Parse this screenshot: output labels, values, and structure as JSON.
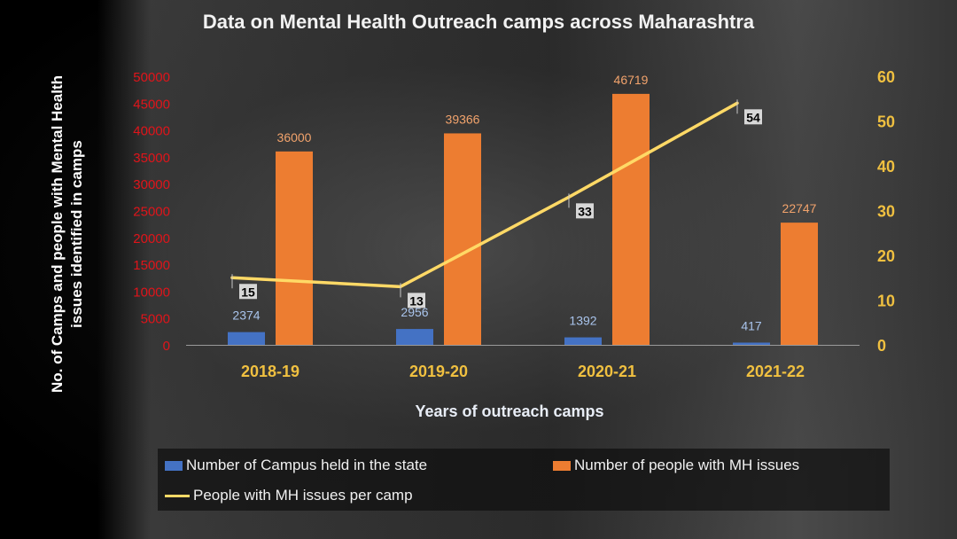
{
  "colors": {
    "blue": "#4472c4",
    "orange": "#ed7d31",
    "line": "#ffd966",
    "left_axis": "#e0141a",
    "right_axis": "#f0c040"
  },
  "chart_data": {
    "type": "bar+line",
    "title": "Data on Mental Health Outreach camps across Maharashtra",
    "xlabel": "Years of outreach camps",
    "ylabel": [
      "No. of  Camps and people with Mental Health",
      "issues identified in camps"
    ],
    "categories": [
      "2018-19",
      "2019-20",
      "2020-21",
      "2021-22"
    ],
    "ylim": [
      0,
      50000
    ],
    "yticks": [
      "50000",
      "45000",
      "40000",
      "35000",
      "30000",
      "25000",
      "20000",
      "15000",
      "10000",
      "5000",
      "0"
    ],
    "y2lim": [
      0,
      60
    ],
    "y2ticks": [
      "60",
      "50",
      "40",
      "30",
      "20",
      "10",
      "0"
    ],
    "series": [
      {
        "name": "Number of Campus held in the state",
        "type": "bar",
        "axis": "left",
        "values": [
          2374,
          2956,
          1392,
          417
        ]
      },
      {
        "name": "Number of people with MH issues",
        "type": "bar",
        "axis": "left",
        "values": [
          36000,
          39366,
          46719,
          22747
        ]
      },
      {
        "name": "People with MH issues per camp",
        "type": "line",
        "axis": "right",
        "values": [
          15,
          13,
          33,
          54
        ]
      }
    ]
  }
}
